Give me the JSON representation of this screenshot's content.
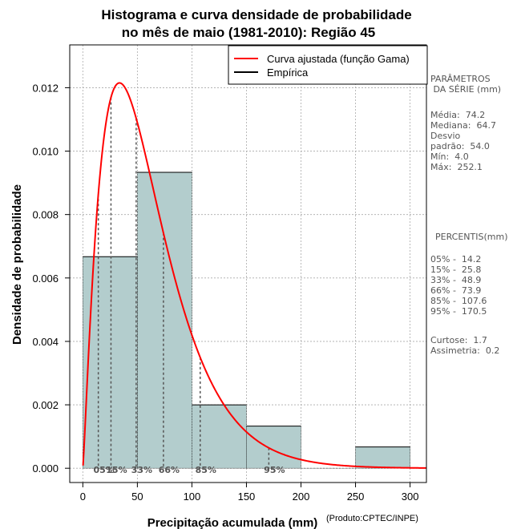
{
  "chart_data": {
    "type": "histogram",
    "title_line1": "Histograma e curva densidade de probabilidade",
    "title_line2": "no mês de maio (1981-2010): Região 45",
    "xlabel": "Precipitação acumulada (mm)",
    "ylabel": "Densidade de probabilidade",
    "xlim": [
      -12,
      315
    ],
    "ylim": [
      -0.00045,
      0.01335
    ],
    "x_ticks": [
      0,
      50,
      100,
      150,
      200,
      250,
      300
    ],
    "y_ticks": [
      "0.000",
      "0.002",
      "0.004",
      "0.006",
      "0.008",
      "0.010",
      "0.012"
    ],
    "bins": [
      {
        "from": 0,
        "to": 50,
        "density": 0.00667
      },
      {
        "from": 50,
        "to": 100,
        "density": 0.00933
      },
      {
        "from": 100,
        "to": 150,
        "density": 0.002
      },
      {
        "from": 150,
        "to": 200,
        "density": 0.00133
      },
      {
        "from": 200,
        "to": 250,
        "density": 0.0
      },
      {
        "from": 250,
        "to": 300,
        "density": 0.00067
      }
    ],
    "gamma_fit": {
      "shape": 2.2,
      "scale": 28.0
    },
    "percentile_markers": [
      {
        "label": "05%",
        "value": 14.2
      },
      {
        "label": "15%",
        "value": 25.8
      },
      {
        "label": "33%",
        "value": 48.9
      },
      {
        "label": "66%",
        "value": 73.9
      },
      {
        "label": "85%",
        "value": 107.6
      },
      {
        "label": "95%",
        "value": 170.5
      }
    ],
    "legend": [
      {
        "label": "Curva ajustada (função Gama)",
        "color": "#ff0000"
      },
      {
        "label": "Empírica",
        "color": "#000000"
      }
    ],
    "colors": {
      "bar": "#b3cdcd",
      "curve": "#ff0000",
      "grid": "#aaaaaa",
      "marker": "#555555"
    }
  },
  "side_panel": {
    "params_header": "PARÂMETROS\n DA SÉRIE (mm)",
    "stats": "Média:  74.2\nMediana:  64.7\nDesvio\npadrão:  54.0\nMín:  4.0\nMáx:  252.1",
    "percentis_header": "PERCENTIS(mm)",
    "percentis": "05% -  14.2\n15% -  25.8\n33% -  48.9\n66% -  73.9\n85% -  107.6\n95% -  170.5",
    "shape": "Curtose:  1.7\nAssimetria:  0.2"
  },
  "credit": "(Produto:CPTEC/INPE)"
}
